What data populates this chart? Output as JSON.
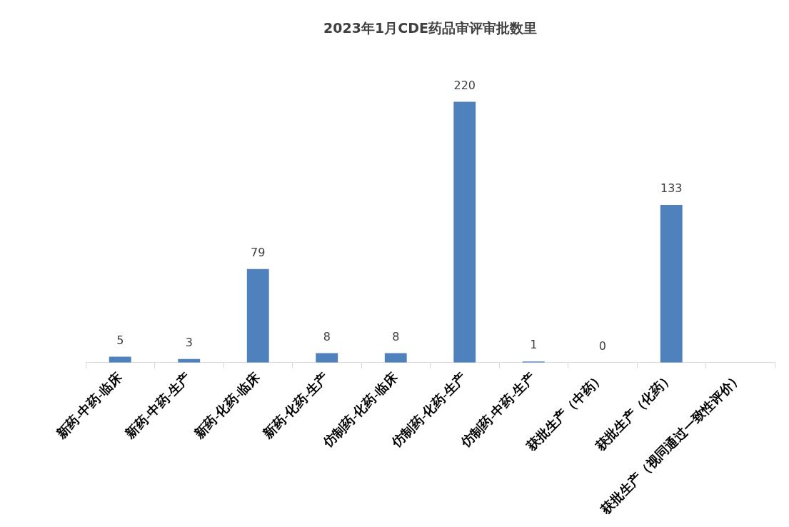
{
  "chart_data": {
    "type": "bar",
    "title": "2023年1月CDE药品审评审批数里",
    "categories": [
      "新药-中药-临床",
      "新药-中药-生产",
      "新药-化药-临床",
      "新药-化药-生产",
      "仿制药-化药-临床",
      "仿制药-化药-生产",
      "仿制药-中药-生产",
      "获批生产（中药）",
      "获批生产（化药）",
      "获批生产（视同通过一致性评价）"
    ],
    "values": [
      5,
      3,
      79,
      8,
      8,
      220,
      1,
      0,
      133,
      null
    ],
    "color": "#4f81bd",
    "data_labels": true,
    "grid": false,
    "legend": false
  }
}
